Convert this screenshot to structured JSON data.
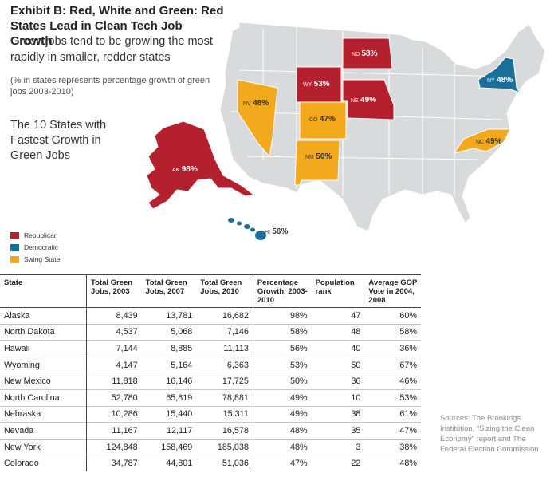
{
  "title": "Exhibit B: Red, White and Green: Red States Lead in Clean Tech Job Growth",
  "subtitle": "Green jobs tend to be growing the most rapidly in smaller, redder states",
  "note": "(% in states represents percentage growth of green jobs 2003-2010)",
  "map_heading": "The 10 States with Fastest Growth in Green Jobs",
  "colors": {
    "republican": "#b5202e",
    "democratic": "#1a6f9a",
    "swing": "#f2a91d",
    "land": "#d9dadb",
    "border": "#ffffff"
  },
  "legend": [
    {
      "label": "Republican",
      "color": "#b5202e"
    },
    {
      "label": "Democratic",
      "color": "#1a6f9a"
    },
    {
      "label": "Swing State",
      "color": "#f2a91d"
    }
  ],
  "map_states": [
    {
      "abbr": "ND",
      "pct": "58%",
      "party": "republican"
    },
    {
      "abbr": "WY",
      "pct": "53%",
      "party": "republican"
    },
    {
      "abbr": "NE",
      "pct": "49%",
      "party": "republican"
    },
    {
      "abbr": "NV",
      "pct": "48%",
      "party": "swing"
    },
    {
      "abbr": "CO",
      "pct": "47%",
      "party": "swing"
    },
    {
      "abbr": "NM",
      "pct": "50%",
      "party": "swing"
    },
    {
      "abbr": "NC",
      "pct": "49%",
      "party": "swing"
    },
    {
      "abbr": "NY",
      "pct": "48%",
      "party": "democratic"
    },
    {
      "abbr": "AK",
      "pct": "98%",
      "party": "republican"
    },
    {
      "abbr": "HI",
      "pct": "56%",
      "party": "democratic"
    }
  ],
  "chart_data": {
    "type": "table",
    "columns": [
      "State",
      "Total Green Jobs, 2003",
      "Total Green Jobs, 2007",
      "Total Green Jobs, 2010",
      "Percentage Growth, 2003-2010",
      "Population rank",
      "Average GOP Vote in 2004, 2008"
    ],
    "rows": [
      [
        "Alaska",
        "8,439",
        "13,781",
        "16,682",
        "98%",
        "47",
        "60%"
      ],
      [
        "North Dakota",
        "4,537",
        "5,068",
        "7,146",
        "58%",
        "48",
        "58%"
      ],
      [
        "Hawaii",
        "7,144",
        "8,885",
        "11,113",
        "56%",
        "40",
        "36%"
      ],
      [
        "Wyoming",
        "4,147",
        "5,164",
        "6,363",
        "53%",
        "50",
        "67%"
      ],
      [
        "New Mexico",
        "11,818",
        "16,146",
        "17,725",
        "50%",
        "36",
        "46%"
      ],
      [
        "North Carolina",
        "52,780",
        "65,819",
        "78,881",
        "49%",
        "10",
        "53%"
      ],
      [
        "Nebraska",
        "10,286",
        "15,440",
        "15,311",
        "49%",
        "38",
        "61%"
      ],
      [
        "Nevada",
        "11,167",
        "12,117",
        "16,578",
        "48%",
        "35",
        "47%"
      ],
      [
        "New York",
        "124,848",
        "158,469",
        "185,038",
        "48%",
        "3",
        "38%"
      ],
      [
        "Colorado",
        "34,787",
        "44,801",
        "51,036",
        "47%",
        "22",
        "48%"
      ]
    ]
  },
  "sources": "Sources: The Brookings Institution, “Sizing the Clean Economy” report and The Federal Election Commission"
}
